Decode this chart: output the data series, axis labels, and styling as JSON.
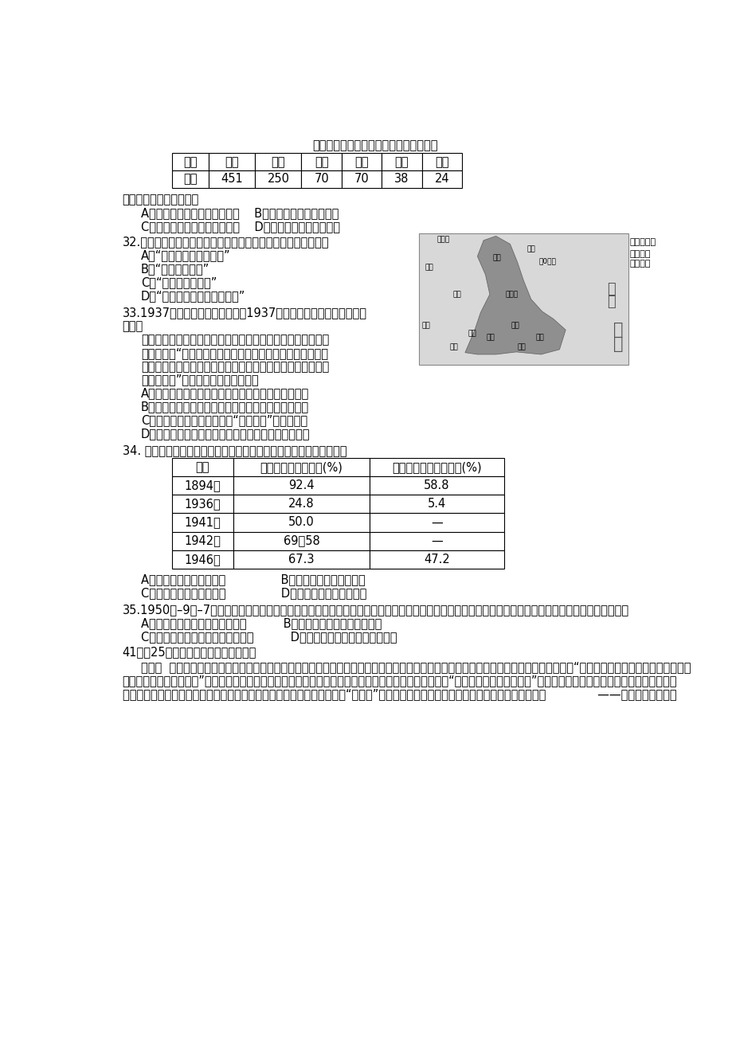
{
  "bg_color": "#ffffff",
  "title_table1": "主要省区农会会员数量状况（单位：万）",
  "table1_headers": [
    "省份",
    "湖南",
    "湖北",
    "广东",
    "陕西",
    "江西",
    "河南"
  ],
  "table1_row": [
    "数量",
    "451",
    "250",
    "70",
    "70",
    "38",
    "24"
  ],
  "table2_headers": [
    "时间",
    "在本国资本中的比重(%)",
    "在全社会资本中的比重(%)"
  ],
  "table2_rows": [
    [
      "1894年",
      "92.4",
      "58.8"
    ],
    [
      "1936年",
      "24.8",
      "5.4"
    ],
    [
      "1941年",
      "50.0",
      "—"
    ],
    [
      "1942年",
      "69．58",
      "—"
    ],
    [
      "1946年",
      "67.3",
      "47.2"
    ]
  ],
  "line_texts": [
    [
      50,
      "当时中国社会的这一状况"
    ],
    [
      80,
      "A．为工农武装割据奠定了基础    B．体现了土地革命的成果"
    ],
    [
      80,
      "C．巩固并扩大了革命统一战线    D．得益于民族工业的发展"
    ],
    [
      50,
      "32.右边为一幅历史地图（局部），判断该图所承载的历史信息是"
    ],
    [
      80,
      "A．“星星之火，可以燎原”"
    ],
    [
      80,
      "B．“到敌人后方去”"
    ],
    [
      80,
      "C．“对日寇最后一战”"
    ],
    [
      80,
      "D．“打倒蝇介石，解放全中国”"
    ],
    [
      50,
      "33.1937年年底，《时代周刊》儇1937年的年度人物选定为蒋介石，"
    ],
    [
      50,
      "介石，"
    ],
    [
      80,
      "而不是连任的美国总统罗斯福或新登基的英国国王乔治六世。"
    ],
    [
      80,
      "理由则是，“中国近代发生的事情，不仅仅构成一个警告，更"
    ],
    [
      80,
      "是一个最后的信号，即白种人的负担将由一个更愿意承担的日"
    ],
    [
      80,
      "本接过去。”《时代周刊》这一反映了"
    ],
    [
      80,
      "A．美国主流意识形态对于蒋介石主持抗战大局的认可"
    ],
    [
      80,
      "B．美日远东格局的改变将直接决定于国民政府的态度"
    ],
    [
      80,
      "C．其对于日本在远东地区的“积极进取”持赞赏态度"
    ],
    [
      80,
      "D．其对于中国已经开始的全中华民族抗战持悲观态度"
    ]
  ],
  "q34_label": "34. 下表为政府资本在近代中国新式产业中的比重构成情况。据此可知",
  "q34_opts": [
    "A．官僚资本始终占据主导               B．外国在华资本日益萎缩",
    "C．民族工业迎来发展春天               D．民族资本主义发展曲折"
  ],
  "q35_lines": [
    "35.1950年–9月–7日，上海市人民政府决定将旧上海由殖民者强行占地建造供其赌博享乐的跑马厅改建为人民公园、人民大道和人民广场。这表明人民政府",
    "A．开启大城市规划改造的新局面          B．行人民当家做主的政治理念",
    "C．构建与新政权一致的意识形态践          D．清除西方殖民主义的历史痕迹"
  ],
  "q41_lines": [
    "41．（25分）阅读材料完成下列要求。",
    "材料一  两汉的经学大师用儒家经义解释现行法律条文，这些注释经过朝廷的批准而具有法律效力，经学与律学关系密切。《唐律疏议》提出“德礼为政教之本，刑罚为政教之用，",
    "犹昼晓阳秋相领而成者也”，直接把礼义道德规范纳入其中一些法律条文，使儒家学说法典化。明朝朱元璊“明礼以导民，定律以绳顽”。让民间推荐年高德勋之人向民众宣读并讲解",
    "《大諰》《大明律》等，使民众知法畏法，不敢犯法；各地还普通设立了“旌善亭”，以为表彰功善之用。最终得以教化大行，秩序安定。              ——据陈鹏生主编《中"
  ],
  "map_label1": "抗日根据地",
  "map_label2": "人民军队",
  "map_label3": "进军路线",
  "map_sea1": "渤",
  "map_sea2": "海",
  "map_sea3": "黄",
  "map_sea4": "海",
  "map_places": [
    [
      30,
      5,
      "大青山"
    ],
    [
      10,
      50,
      "晋绵"
    ],
    [
      55,
      95,
      "晋察"
    ],
    [
      120,
      35,
      "大同"
    ],
    [
      175,
      20,
      "平北"
    ],
    [
      195,
      40,
      "儠0天津"
    ],
    [
      140,
      95,
      "石家庄"
    ],
    [
      5,
      145,
      "延安"
    ],
    [
      150,
      145,
      "济南"
    ],
    [
      80,
      158,
      "开封"
    ],
    [
      110,
      165,
      "菏泽"
    ],
    [
      190,
      165,
      "青岛"
    ],
    [
      160,
      180,
      "兆北"
    ],
    [
      50,
      180,
      "徐州"
    ]
  ]
}
